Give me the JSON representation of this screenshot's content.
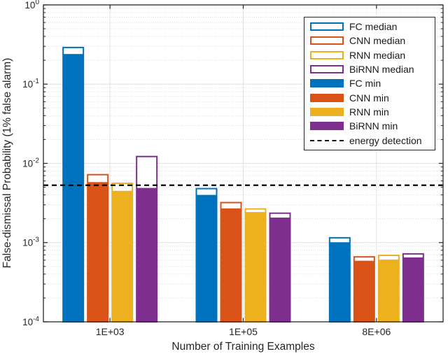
{
  "chart_data": {
    "type": "bar",
    "title": "",
    "xlabel": "Number of Training Examples",
    "ylabel": "False-dismissal Probability (1% false alarm)",
    "yscale": "log",
    "ylim": [
      0.0001,
      1
    ],
    "y_tick_exponents": [
      0,
      -1,
      -2,
      -3,
      -4
    ],
    "grid": true,
    "minor_grid": true,
    "legend_position": "northeast",
    "categories": [
      "1E+03",
      "1E+05",
      "8E+06"
    ],
    "series": [
      {
        "name": "FC median",
        "style": "outline",
        "color": "#0072BD",
        "values": [
          0.29,
          0.0048,
          0.00115
        ]
      },
      {
        "name": "CNN median",
        "style": "outline",
        "color": "#D95319",
        "values": [
          0.0072,
          0.0032,
          0.00066
        ]
      },
      {
        "name": "RNN median",
        "style": "outline",
        "color": "#EDB120",
        "values": [
          0.0056,
          0.00266,
          0.00069
        ]
      },
      {
        "name": "BiRNN median",
        "style": "outline",
        "color": "#7E2F8E",
        "values": [
          0.0122,
          0.00235,
          0.00072
        ]
      },
      {
        "name": "FC min",
        "style": "fill",
        "color": "#0072BD",
        "values": [
          0.24,
          0.004,
          0.00101
        ]
      },
      {
        "name": "CNN min",
        "style": "fill",
        "color": "#D95319",
        "values": [
          0.0058,
          0.0027,
          0.00059
        ]
      },
      {
        "name": "RNN min",
        "style": "fill",
        "color": "#EDB120",
        "values": [
          0.0045,
          0.00243,
          0.00061
        ]
      },
      {
        "name": "BiRNN min",
        "style": "fill",
        "color": "#7E2F8E",
        "values": [
          0.0049,
          0.00207,
          0.00065
        ]
      }
    ],
    "reference_line": {
      "label": "energy detection",
      "value": 0.0053,
      "color": "#000000",
      "line_style": "dashed"
    }
  },
  "colors": {
    "axis": "#262626",
    "text": "#262626",
    "major_grid": "#e2e2e2",
    "minor_grid": "#dcdcdc",
    "background": "#ffffff",
    "legend_border": "#262626"
  }
}
